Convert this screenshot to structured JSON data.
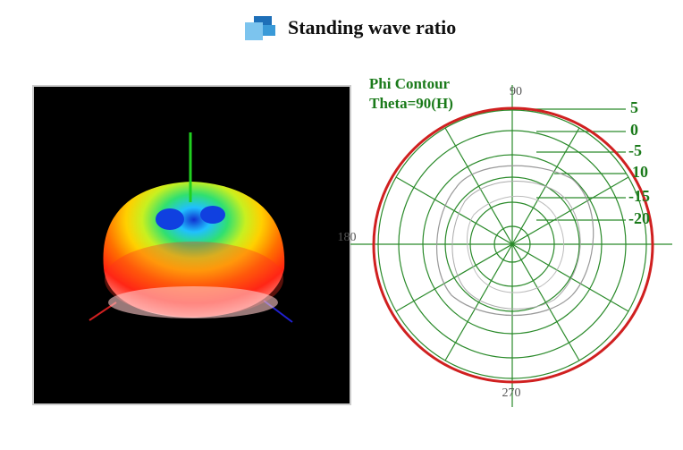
{
  "header": {
    "title": "Standing wave ratio"
  },
  "polar": {
    "title": "Phi Contour",
    "subtitle": "Theta=90(H)",
    "angle_labels": [
      "90",
      "180",
      "270"
    ],
    "radial_labels": [
      "5",
      "0",
      "-5",
      "10",
      "-15",
      "-20"
    ]
  }
}
